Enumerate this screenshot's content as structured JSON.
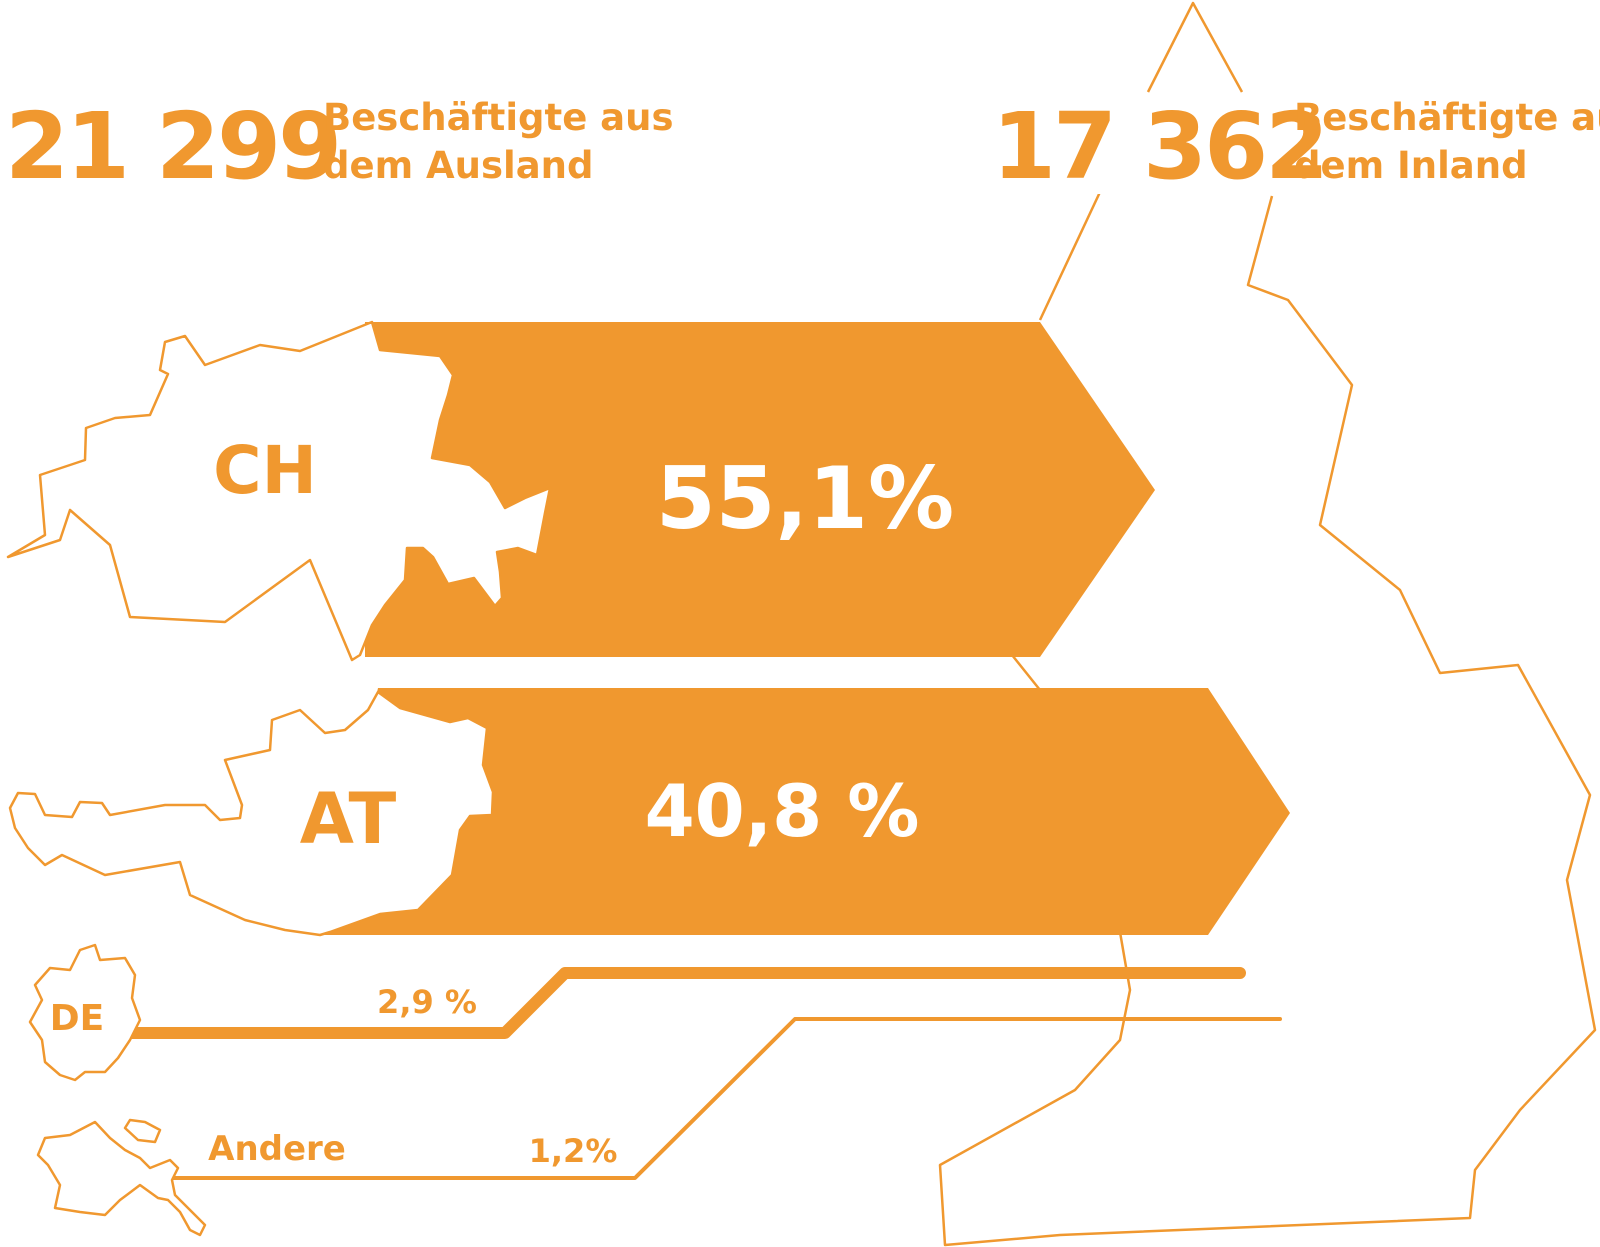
{
  "colors": {
    "accent": "#f0982f",
    "background": "#ffffff"
  },
  "header": {
    "abroad": {
      "number": "21 299",
      "line1": "Beschäftigte aus",
      "line2": "dem Ausland"
    },
    "domestic": {
      "number": "17 362",
      "line1": "Beschäftigte aus",
      "line2": "dem Inland"
    }
  },
  "chart_data": {
    "type": "bar",
    "title": "",
    "xlabel": "",
    "ylabel": "",
    "categories": [
      "CH",
      "AT",
      "DE",
      "Andere"
    ],
    "values": [
      55.1,
      40.8,
      2.9,
      1.2
    ],
    "value_labels": [
      "55,1%",
      "40,8 %",
      "2,9 %",
      "1,2%"
    ],
    "unit": "%",
    "ylim": [
      0,
      100
    ],
    "grid": false,
    "legend": "none"
  }
}
